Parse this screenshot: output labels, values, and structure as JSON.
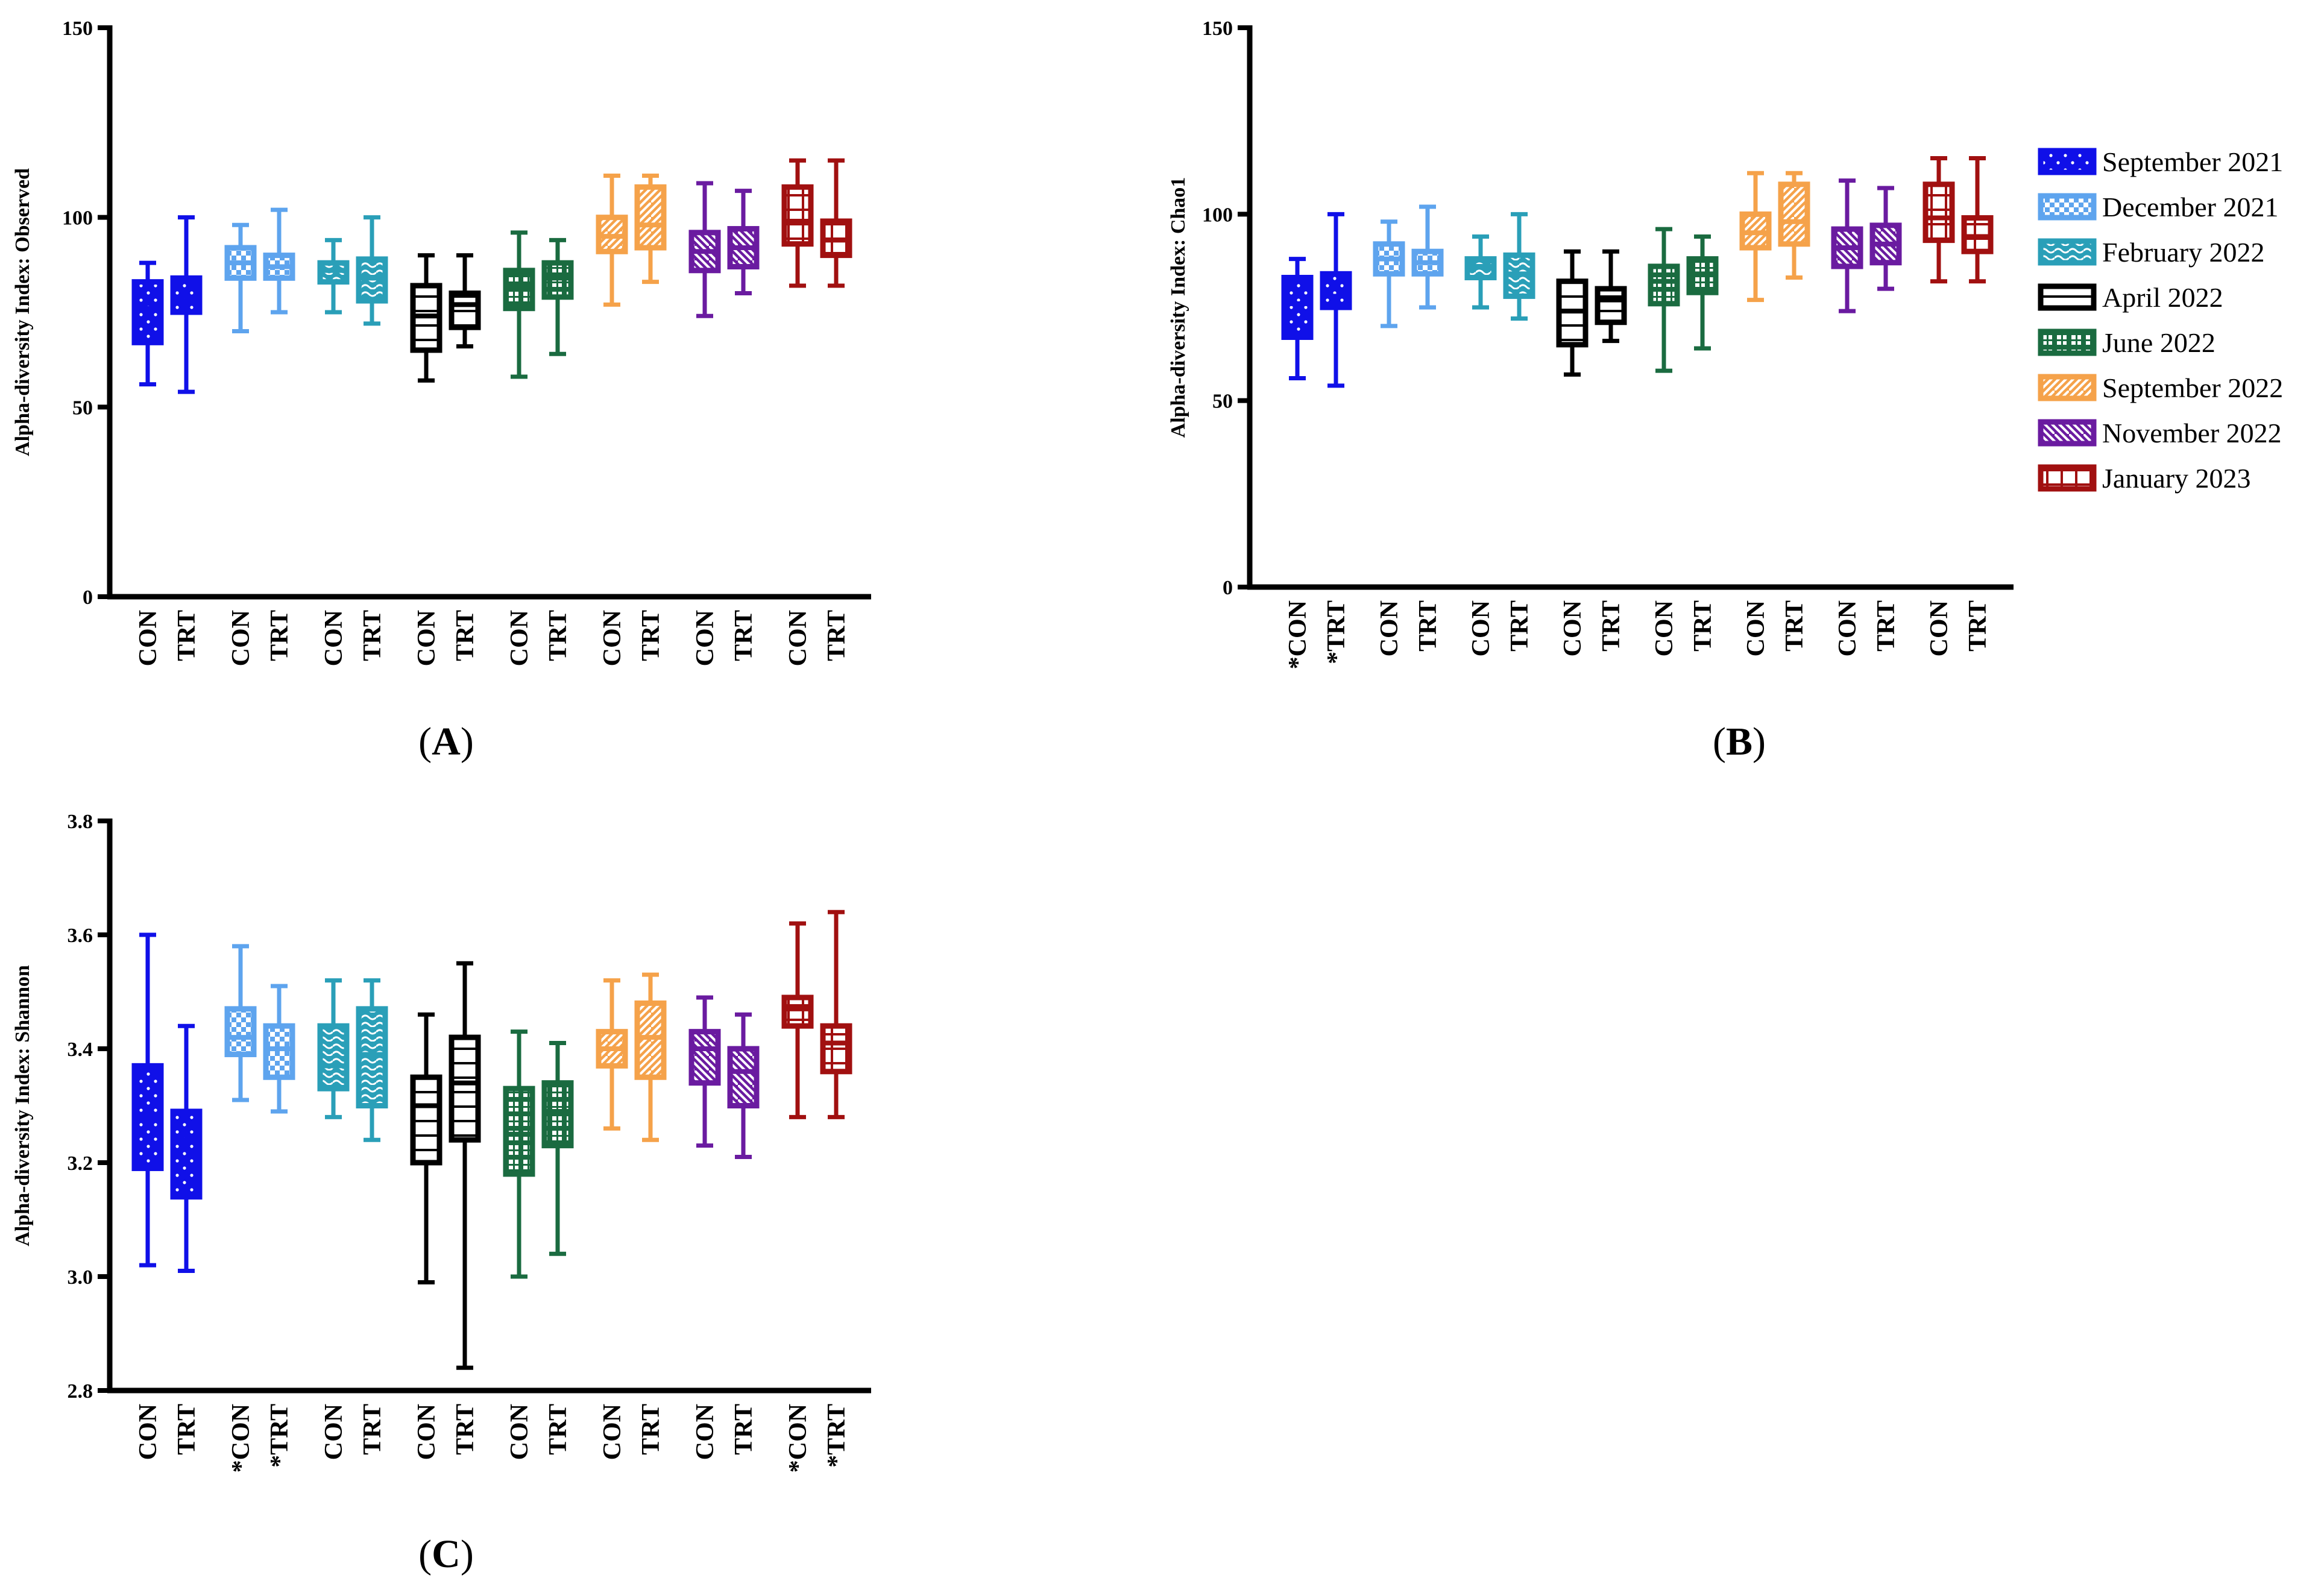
{
  "colors": {
    "September 2021": "#1010E8",
    "December 2021": "#5EA4EE",
    "February 2022": "#2A9FB8",
    "April 2022": "#000000",
    "June 2022": "#1A6B40",
    "September 2022": "#F5A24A",
    "November 2022": "#6A1BA0",
    "January 2023": "#A11010"
  },
  "legend": {
    "entries": [
      {
        "label": "September 2021",
        "pattern": "dots"
      },
      {
        "label": "December 2021",
        "pattern": "checker"
      },
      {
        "label": "February 2022",
        "pattern": "wave"
      },
      {
        "label": "April 2022",
        "pattern": "hlines"
      },
      {
        "label": "June 2022",
        "pattern": "grid"
      },
      {
        "label": "September 2022",
        "pattern": "diag"
      },
      {
        "label": "November 2022",
        "pattern": "diagback"
      },
      {
        "label": "January 2023",
        "pattern": "bricks"
      }
    ]
  },
  "chart_data": [
    {
      "panel": "(A)",
      "type": "boxplot",
      "ylabel": "Alpha-diversity Index: Observed",
      "ylim": [
        0,
        150
      ],
      "yticks": [
        "0",
        "50",
        "100",
        "150"
      ],
      "yticks_values": [
        0,
        50,
        100,
        150
      ],
      "boxes": [
        {
          "group": "September 2021",
          "label": "CON",
          "min": 56,
          "q1": 67,
          "median": 76,
          "q3": 83,
          "max": 88
        },
        {
          "group": "September 2021",
          "label": "TRT",
          "min": 54,
          "q1": 75,
          "median": 78,
          "q3": 84,
          "max": 100
        },
        {
          "group": "December 2021",
          "label": "CON",
          "min": 70,
          "q1": 84,
          "median": 88,
          "q3": 92,
          "max": 98
        },
        {
          "group": "December 2021",
          "label": "TRT",
          "min": 75,
          "q1": 84,
          "median": 87,
          "q3": 90,
          "max": 102
        },
        {
          "group": "February 2022",
          "label": "CON",
          "min": 75,
          "q1": 83,
          "median": 86,
          "q3": 88,
          "max": 94
        },
        {
          "group": "February 2022",
          "label": "TRT",
          "min": 72,
          "q1": 78,
          "median": 84,
          "q3": 89,
          "max": 100
        },
        {
          "group": "April 2022",
          "label": "CON",
          "min": 57,
          "q1": 65,
          "median": 74,
          "q3": 82,
          "max": 90
        },
        {
          "group": "April 2022",
          "label": "TRT",
          "min": 66,
          "q1": 71,
          "median": 77,
          "q3": 80,
          "max": 90
        },
        {
          "group": "June 2022",
          "label": "CON",
          "min": 58,
          "q1": 76,
          "median": 82,
          "q3": 86,
          "max": 96
        },
        {
          "group": "June 2022",
          "label": "TRT",
          "min": 64,
          "q1": 79,
          "median": 84,
          "q3": 88,
          "max": 94
        },
        {
          "group": "September 2022",
          "label": "CON",
          "min": 77,
          "q1": 91,
          "median": 95,
          "q3": 100,
          "max": 111
        },
        {
          "group": "September 2022",
          "label": "TRT",
          "min": 83,
          "q1": 92,
          "median": 98,
          "q3": 108,
          "max": 111
        },
        {
          "group": "November 2022",
          "label": "CON",
          "min": 74,
          "q1": 86,
          "median": 91,
          "q3": 96,
          "max": 109
        },
        {
          "group": "November 2022",
          "label": "TRT",
          "min": 80,
          "q1": 87,
          "median": 92,
          "q3": 97,
          "max": 107
        },
        {
          "group": "January 2023",
          "label": "CON",
          "min": 82,
          "q1": 93,
          "median": 99,
          "q3": 108,
          "max": 115
        },
        {
          "group": "January 2023",
          "label": "TRT",
          "min": 82,
          "q1": 90,
          "median": 94,
          "q3": 99,
          "max": 115
        }
      ]
    },
    {
      "panel": "(B)",
      "type": "boxplot",
      "ylabel": "Alpha-diversity Index: Chao1",
      "ylim": [
        0,
        150
      ],
      "yticks": [
        "0",
        "50",
        "100",
        "150"
      ],
      "yticks_values": [
        0,
        50,
        100,
        150
      ],
      "boxes": [
        {
          "group": "September 2021",
          "label": "*CON",
          "min": 56,
          "q1": 67,
          "median": 76,
          "q3": 83,
          "max": 88
        },
        {
          "group": "September 2021",
          "label": "*TRT",
          "min": 54,
          "q1": 75,
          "median": 78,
          "q3": 84,
          "max": 100
        },
        {
          "group": "December 2021",
          "label": "CON",
          "min": 70,
          "q1": 84,
          "median": 88,
          "q3": 92,
          "max": 98
        },
        {
          "group": "December 2021",
          "label": "TRT",
          "min": 75,
          "q1": 84,
          "median": 87,
          "q3": 90,
          "max": 102
        },
        {
          "group": "February 2022",
          "label": "CON",
          "min": 75,
          "q1": 83,
          "median": 86,
          "q3": 88,
          "max": 94
        },
        {
          "group": "February 2022",
          "label": "TRT",
          "min": 72,
          "q1": 78,
          "median": 84,
          "q3": 89,
          "max": 100
        },
        {
          "group": "April 2022",
          "label": "CON",
          "min": 57,
          "q1": 65,
          "median": 74,
          "q3": 82,
          "max": 90
        },
        {
          "group": "April 2022",
          "label": "TRT",
          "min": 66,
          "q1": 71,
          "median": 77,
          "q3": 80,
          "max": 90
        },
        {
          "group": "June 2022",
          "label": "CON",
          "min": 58,
          "q1": 76,
          "median": 82,
          "q3": 86,
          "max": 96
        },
        {
          "group": "June 2022",
          "label": "TRT",
          "min": 64,
          "q1": 79,
          "median": 84,
          "q3": 88,
          "max": 94
        },
        {
          "group": "September 2022",
          "label": "CON",
          "min": 77,
          "q1": 91,
          "median": 95,
          "q3": 100,
          "max": 111
        },
        {
          "group": "September 2022",
          "label": "TRT",
          "min": 83,
          "q1": 92,
          "median": 98,
          "q3": 108,
          "max": 111
        },
        {
          "group": "November 2022",
          "label": "CON",
          "min": 74,
          "q1": 86,
          "median": 91,
          "q3": 96,
          "max": 109
        },
        {
          "group": "November 2022",
          "label": "TRT",
          "min": 80,
          "q1": 87,
          "median": 92,
          "q3": 97,
          "max": 107
        },
        {
          "group": "January 2023",
          "label": "CON",
          "min": 82,
          "q1": 93,
          "median": 99,
          "q3": 108,
          "max": 115
        },
        {
          "group": "January 2023",
          "label": "TRT",
          "min": 82,
          "q1": 90,
          "median": 94,
          "q3": 99,
          "max": 115
        }
      ]
    },
    {
      "panel": "(C)",
      "type": "boxplot",
      "ylabel": "Alpha-diversity Index: Shannon",
      "ylim": [
        2.8,
        3.8
      ],
      "yticks": [
        "2.8",
        "3.0",
        "3.2",
        "3.4",
        "3.6",
        "3.8"
      ],
      "yticks_values": [
        2.8,
        3.0,
        3.2,
        3.4,
        3.6,
        3.8
      ],
      "boxes": [
        {
          "group": "September 2021",
          "label": "CON",
          "min": 3.02,
          "q1": 3.19,
          "median": 3.28,
          "q3": 3.37,
          "max": 3.6
        },
        {
          "group": "September 2021",
          "label": "TRT",
          "min": 3.01,
          "q1": 3.14,
          "median": 3.24,
          "q3": 3.29,
          "max": 3.44
        },
        {
          "group": "December 2021",
          "label": "*CON",
          "min": 3.31,
          "q1": 3.39,
          "median": 3.42,
          "q3": 3.47,
          "max": 3.58
        },
        {
          "group": "December 2021",
          "label": "*TRT",
          "min": 3.29,
          "q1": 3.35,
          "median": 3.4,
          "q3": 3.44,
          "max": 3.51
        },
        {
          "group": "February 2022",
          "label": "CON",
          "min": 3.28,
          "q1": 3.33,
          "median": 3.37,
          "q3": 3.44,
          "max": 3.52
        },
        {
          "group": "February 2022",
          "label": "TRT",
          "min": 3.24,
          "q1": 3.3,
          "median": 3.39,
          "q3": 3.47,
          "max": 3.52
        },
        {
          "group": "April 2022",
          "label": "CON",
          "min": 2.99,
          "q1": 3.2,
          "median": 3.3,
          "q3": 3.35,
          "max": 3.46
        },
        {
          "group": "April 2022",
          "label": "TRT",
          "min": 2.84,
          "q1": 3.24,
          "median": 3.34,
          "q3": 3.42,
          "max": 3.55
        },
        {
          "group": "June 2022",
          "label": "CON",
          "min": 3.0,
          "q1": 3.18,
          "median": 3.25,
          "q3": 3.33,
          "max": 3.43
        },
        {
          "group": "June 2022",
          "label": "TRT",
          "min": 3.04,
          "q1": 3.23,
          "median": 3.29,
          "q3": 3.34,
          "max": 3.41
        },
        {
          "group": "September 2022",
          "label": "CON",
          "min": 3.26,
          "q1": 3.37,
          "median": 3.4,
          "q3": 3.43,
          "max": 3.52
        },
        {
          "group": "September 2022",
          "label": "TRT",
          "min": 3.24,
          "q1": 3.35,
          "median": 3.42,
          "q3": 3.48,
          "max": 3.53
        },
        {
          "group": "November 2022",
          "label": "CON",
          "min": 3.23,
          "q1": 3.34,
          "median": 3.4,
          "q3": 3.43,
          "max": 3.49
        },
        {
          "group": "November 2022",
          "label": "TRT",
          "min": 3.21,
          "q1": 3.3,
          "median": 3.36,
          "q3": 3.4,
          "max": 3.46
        },
        {
          "group": "January 2023",
          "label": "*CON",
          "min": 3.28,
          "q1": 3.44,
          "median": 3.47,
          "q3": 3.49,
          "max": 3.62
        },
        {
          "group": "January 2023",
          "label": "*TRT",
          "min": 3.28,
          "q1": 3.36,
          "median": 3.41,
          "q3": 3.44,
          "max": 3.64
        }
      ]
    }
  ]
}
